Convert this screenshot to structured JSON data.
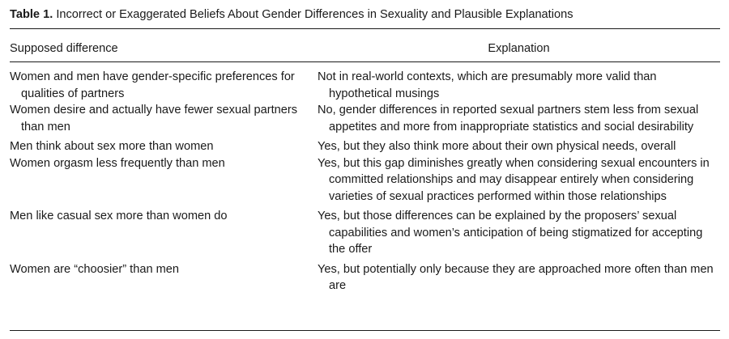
{
  "table": {
    "label": "Table 1.",
    "title": "Incorrect or Exaggerated Beliefs About Gender Differences in Sexuality and Plausible Explanations",
    "columns": [
      "Supposed difference",
      "Explanation"
    ],
    "rows": [
      {
        "difference": "Women and men have gender-specific preferences for qualities of partners",
        "explanation": "Not in real-world contexts, which are presumably more valid than hypothetical musings"
      },
      {
        "difference": "Women desire and actually have fewer sexual partners than men",
        "explanation": "No, gender differences in reported sexual partners stem less from sexual appetites and more from inappropriate statistics and social desirability"
      },
      {
        "difference": "Men think about sex more than women",
        "explanation": "Yes, but they also think more about their own physical needs, overall"
      },
      {
        "difference": "Women orgasm less frequently than men",
        "explanation": "Yes, but this gap diminishes greatly when considering sexual encounters in committed relationships and may disappear entirely when considering varieties of sexual practices performed within those relationships"
      },
      {
        "difference": "Men like casual sex more than women do",
        "explanation": "Yes, but those differences can be explained by the proposers’ sexual capabilities and women’s anticipation of being stigmatized for accepting the offer"
      },
      {
        "difference": "Women are “choosier” than men",
        "explanation": "Yes, but potentially only because they are approached more often than men are"
      }
    ]
  }
}
